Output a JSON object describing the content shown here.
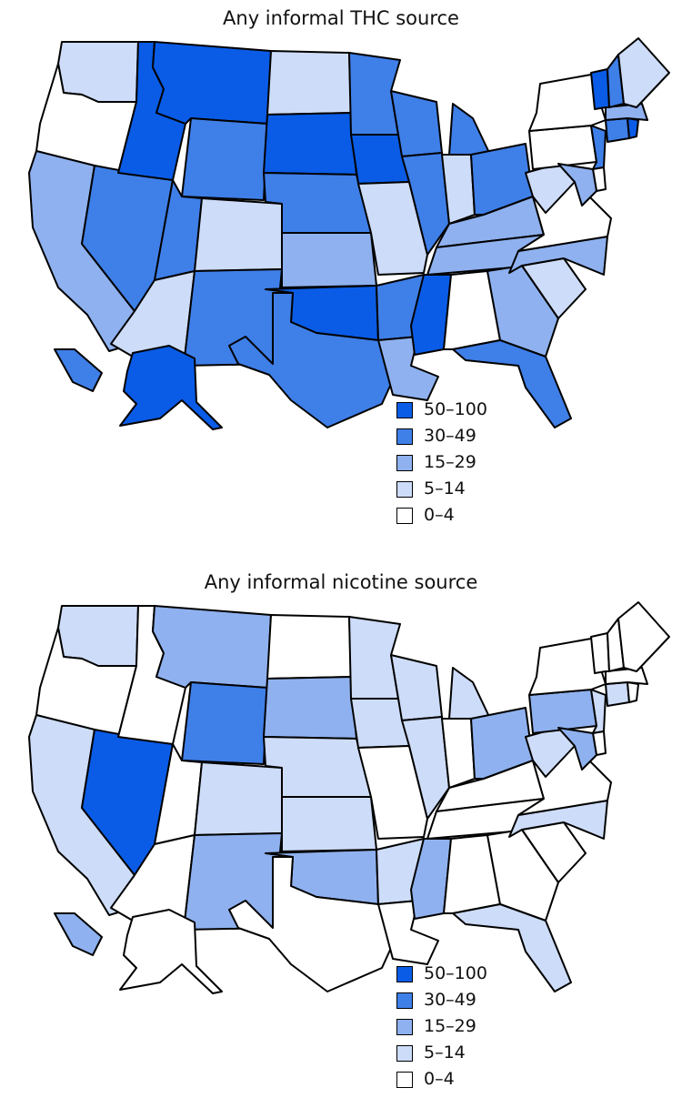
{
  "colors": {
    "c50": "#0a5ce6",
    "c30": "#3f7fe8",
    "c15": "#8fb1ef",
    "c5": "#cddcf8",
    "c0": "#ffffff"
  },
  "maps": [
    {
      "title": "Any informal THC source",
      "legend": [
        "50–100",
        "30–49",
        "15–29",
        "5–14",
        "0–4"
      ],
      "states": {
        "WA": "c5",
        "OR": "c0",
        "CA": "c15",
        "NV": "c30",
        "ID": "c50",
        "MT": "c50",
        "WY": "c30",
        "UT": "c30",
        "AZ": "c5",
        "CO": "c5",
        "NM": "c30",
        "ND": "c5",
        "SD": "c50",
        "NE": "c30",
        "KS": "c15",
        "OK": "c50",
        "TX": "c30",
        "MN": "c30",
        "IA": "c50",
        "MO": "c5",
        "AR": "c30",
        "LA": "c15",
        "WI": "c30",
        "IL": "c30",
        "MI": "c30",
        "IN": "c5",
        "OH": "c30",
        "KY": "c15",
        "TN": "c15",
        "MS": "c50",
        "AL": "c0",
        "GA": "c15",
        "FL": "c30",
        "SC": "c5",
        "NC": "c15",
        "VA": "c0",
        "WV": "c5",
        "PA": "c0",
        "NY": "c0",
        "NJ": "c30",
        "DE": "c0",
        "MD": "c15",
        "CT": "c30",
        "RI": "c50",
        "MA": "c15",
        "VT": "c50",
        "NH": "c30",
        "ME": "c5",
        "AK": "c50",
        "HI": "c30"
      }
    },
    {
      "title": "Any informal nicotine source",
      "legend": [
        "50–100",
        "30–49",
        "15–29",
        "5–14",
        "0–4"
      ],
      "states": {
        "WA": "c5",
        "OR": "c0",
        "CA": "c5",
        "NV": "c50",
        "ID": "c0",
        "MT": "c15",
        "WY": "c30",
        "UT": "c0",
        "AZ": "c0",
        "CO": "c5",
        "NM": "c15",
        "ND": "c0",
        "SD": "c15",
        "NE": "c5",
        "KS": "c5",
        "OK": "c15",
        "TX": "c0",
        "MN": "c5",
        "IA": "c5",
        "MO": "c0",
        "AR": "c5",
        "LA": "c0",
        "WI": "c5",
        "IL": "c5",
        "MI": "c5",
        "IN": "c0",
        "OH": "c15",
        "KY": "c0",
        "TN": "c0",
        "MS": "c15",
        "AL": "c0",
        "GA": "c0",
        "FL": "c5",
        "SC": "c0",
        "NC": "c5",
        "VA": "c0",
        "WV": "c5",
        "PA": "c15",
        "NY": "c0",
        "NJ": "c5",
        "DE": "c0",
        "MD": "c15",
        "CT": "c5",
        "RI": "c0",
        "MA": "c0",
        "VT": "c0",
        "NH": "c0",
        "ME": "c0",
        "AK": "c0",
        "HI": "c15"
      }
    }
  ]
}
